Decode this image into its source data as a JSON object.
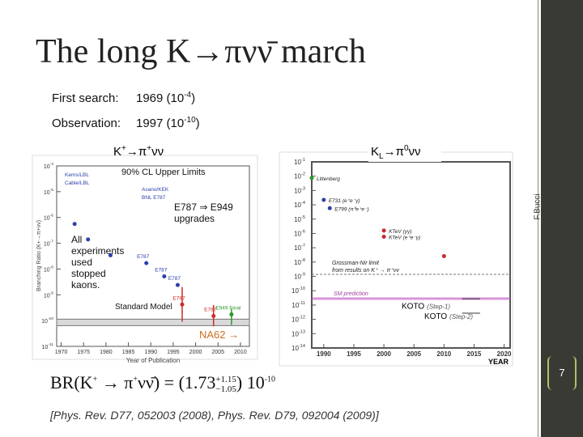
{
  "title": "The long K→πνν̄ march",
  "side_label": "F.Bucci",
  "page_number": "7",
  "facts": [
    {
      "label": "First search:",
      "value": "1969 (10",
      "exponent": "-4",
      "close": ")"
    },
    {
      "label": "Observation:",
      "value": "1997 (10",
      "exponent": "-10",
      "close": ")"
    }
  ],
  "left_plot": {
    "tag": {
      "base": "K",
      "sup1": "+",
      "mid": "→π",
      "sup2": "+",
      "tail": "νν"
    },
    "x_title": "Year of Publication",
    "y_title": "Branching Ratio (K+→π+νν)",
    "legend": [
      "Kems/LBL",
      "Cable/LBL",
      "Asano/KEK",
      "BNL E787"
    ],
    "notes": [
      "90% CL Upper Limits",
      "E787 ⇒ E949",
      "upgrades",
      "All",
      "experiments",
      "used",
      "stopped",
      "kaons.",
      "Standard Model"
    ],
    "arrow_label": "NA62 →",
    "log_scale": true,
    "xlim": [
      1969,
      2012
    ],
    "xticks": [
      1970,
      1975,
      1980,
      1985,
      1990,
      1995,
      2000,
      2005,
      2010
    ],
    "ylim": [
      1e-11,
      0.0001
    ],
    "yticks": [
      {
        "value": 0.0001,
        "label": "10",
        "sup": "-4"
      },
      {
        "value": 1e-05,
        "label": "10",
        "sup": "-5"
      },
      {
        "value": 1e-06,
        "label": "10",
        "sup": "-6"
      },
      {
        "value": 1e-07,
        "label": "10",
        "sup": "-7"
      },
      {
        "value": 1e-08,
        "label": "10",
        "sup": "-8"
      },
      {
        "value": 1e-09,
        "label": "10",
        "sup": "-9"
      },
      {
        "value": 1e-10,
        "label": "10",
        "sup": "-10"
      },
      {
        "value": 1e-11,
        "label": "10",
        "sup": "-11"
      }
    ],
    "sm_value": 8.5e-11,
    "points": [
      {
        "x": 1973,
        "y": 5.6e-07,
        "color": "#2b3fa8"
      },
      {
        "x": 1976,
        "y": 1.4e-07,
        "color": "#2b3fa8"
      },
      {
        "x": 1981,
        "y": 3.4e-08,
        "color": "#2b3fa8"
      },
      {
        "x": 1989,
        "y": 1.7e-08,
        "color": "#2b3fa8",
        "label": "E787"
      },
      {
        "x": 1993,
        "y": 5.2e-09,
        "color": "#2b3fa8",
        "label": "E787"
      },
      {
        "x": 1996,
        "y": 2.4e-09,
        "color": "#2b3fa8",
        "label": "E787"
      },
      {
        "x": 1997,
        "y": 4.2e-10,
        "low": 9e-11,
        "high": 2e-09,
        "color": "#cc2a2a",
        "label": "E787"
      },
      {
        "x": 2004,
        "y": 1.5e-10,
        "low": 6e-11,
        "high": 4e-10,
        "color": "#cc2a2a",
        "label": "E787"
      },
      {
        "x": 2008,
        "y": 1.73e-10,
        "low": 6.8e-11,
        "high": 2.9e-10,
        "color": "#2a9a2a",
        "label": "E949 Final"
      }
    ]
  },
  "right_plot": {
    "tag": {
      "base": "K",
      "sub": "L",
      "mid": "→π",
      "sup": "0",
      "tail": "νν"
    },
    "x_title": "YEAR",
    "log_scale": true,
    "xlim": [
      1988,
      2021
    ],
    "xticks": [
      1990,
      1995,
      2000,
      2005,
      2010,
      2015,
      2020
    ],
    "ylim": [
      1e-14,
      0.1
    ],
    "yticks": [
      {
        "value": 0.1,
        "label": "10",
        "sup": "-1"
      },
      {
        "value": 0.01,
        "label": "10",
        "sup": "-2"
      },
      {
        "value": 0.001,
        "label": "10",
        "sup": "-3"
      },
      {
        "value": 0.0001,
        "label": "10",
        "sup": "-4"
      },
      {
        "value": 1e-05,
        "label": "10",
        "sup": "-5"
      },
      {
        "value": 1e-06,
        "label": "10",
        "sup": "-6"
      },
      {
        "value": 1e-07,
        "label": "10",
        "sup": "-7"
      },
      {
        "value": 1e-08,
        "label": "10",
        "sup": "-8"
      },
      {
        "value": 1e-09,
        "label": "10",
        "sup": "-9"
      },
      {
        "value": 1e-10,
        "label": "10",
        "sup": "-10"
      },
      {
        "value": 1e-11,
        "label": "10",
        "sup": "-11"
      },
      {
        "value": 1e-12,
        "label": "10",
        "sup": "-12"
      },
      {
        "value": 1e-13,
        "label": "10",
        "sup": "-13"
      },
      {
        "value": 1e-14,
        "label": "10",
        "sup": "-14"
      }
    ],
    "points": [
      {
        "x": 1988,
        "y": 0.0076,
        "color": "#2a9a2a",
        "label": "Littenberg"
      },
      {
        "x": 1990,
        "y": 0.00022,
        "color": "#2b3fa8",
        "label": "E731 (e⁺e⁻γ)"
      },
      {
        "x": 1991,
        "y": 5.8e-05,
        "color": "#2b3fa8",
        "label": "E799 (π⁰e⁺e⁻)"
      },
      {
        "x": 2000,
        "y": 5.9e-07,
        "color": "#cc2a2a",
        "label": "KTeV (e⁺e⁻γ)"
      },
      {
        "x": 2000,
        "y": 1.6e-06,
        "color": "#cc2a2a",
        "label": "KTeV (γγ)"
      },
      {
        "x": 2010,
        "y": 2.6e-08,
        "color": "#cc2a2a"
      }
    ],
    "gn_value": 1.4e-09,
    "gn_labels": [
      "Grossman-Nir limit",
      "from results on K⁺ → π⁺νν"
    ],
    "sm_value": 2.8e-11,
    "sm_label": "SM prediction",
    "koto": [
      {
        "name": "KOTO",
        "step": "(Step-1)",
        "value": 2.7e-11
      },
      {
        "name": "KOTO",
        "step": "(Step-2)",
        "value": 2.7e-12
      }
    ]
  },
  "formula": {
    "prefix": "BR(K",
    "k_charge": "+",
    "arrow": " → π",
    "pi_charge": "+",
    "nu": "νν̄) = (",
    "central": "1.73",
    "plus": "+1.15",
    "minus": "−1.05",
    "close": ")",
    "base": "10",
    "exponent": "-10"
  },
  "reference": "[Phys. Rev. D77, 052003 (2008), Phys. Rev. D79, 092004 (2009)]"
}
